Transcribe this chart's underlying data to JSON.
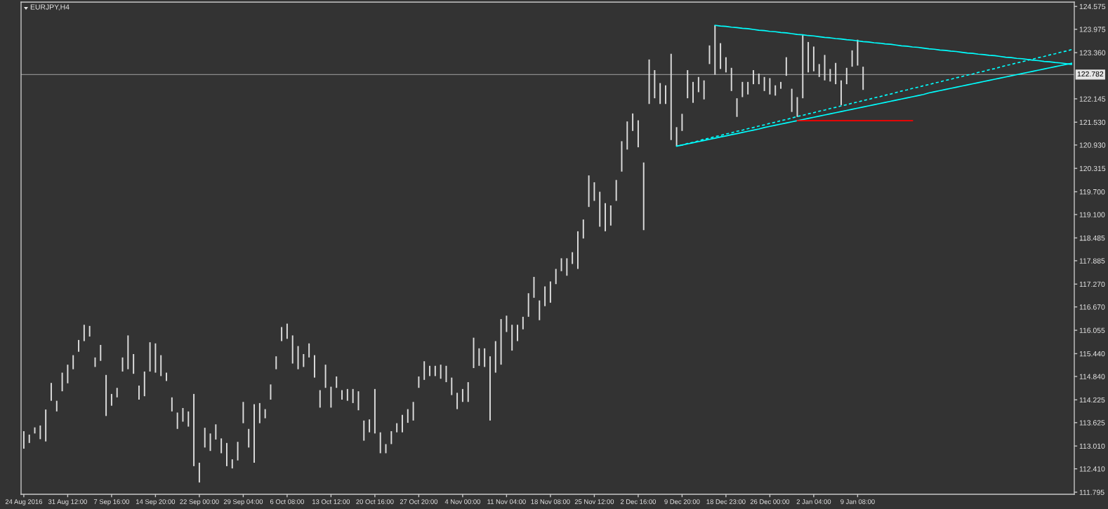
{
  "chart_data": {
    "type": "bar",
    "title": "EURJPY,H4",
    "categories": [
      "24 Aug 2016",
      null,
      null,
      null,
      null,
      null,
      null,
      null,
      "31 Aug 12:00",
      null,
      null,
      null,
      null,
      null,
      null,
      null,
      "7 Sep 16:00",
      null,
      null,
      null,
      null,
      null,
      null,
      null,
      "14 Sep 20:00",
      null,
      null,
      null,
      null,
      null,
      null,
      null,
      "22 Sep 00:00",
      null,
      null,
      null,
      null,
      null,
      null,
      null,
      "29 Sep 04:00",
      null,
      null,
      null,
      null,
      null,
      null,
      null,
      "6 Oct 08:00",
      null,
      null,
      null,
      null,
      null,
      null,
      null,
      "13 Oct 12:00",
      null,
      null,
      null,
      null,
      null,
      null,
      null,
      "20 Oct 16:00",
      null,
      null,
      null,
      null,
      null,
      null,
      null,
      "27 Oct 20:00",
      null,
      null,
      null,
      null,
      null,
      null,
      null,
      "4 Nov 00:00",
      null,
      null,
      null,
      null,
      null,
      null,
      null,
      "11 Nov 04:00",
      null,
      null,
      null,
      null,
      null,
      null,
      null,
      "18 Nov 08:00",
      null,
      null,
      null,
      null,
      null,
      null,
      null,
      "25 Nov 12:00",
      null,
      null,
      null,
      null,
      null,
      null,
      null,
      "2 Dec 16:00",
      null,
      null,
      null,
      null,
      null,
      null,
      null,
      "9 Dec 20:00",
      null,
      null,
      null,
      null,
      null,
      null,
      null,
      "18 Dec 23:00",
      null,
      null,
      null,
      null,
      null,
      null,
      null,
      "26 Dec 00:00",
      null,
      null,
      null,
      null,
      null,
      null,
      null,
      "2 Jan 04:00",
      null,
      null,
      null,
      null,
      null,
      null,
      null,
      "9 Jan 08:00",
      null,
      null,
      null,
      null,
      null,
      null,
      null,
      null,
      null,
      null,
      null,
      null,
      null,
      null,
      null,
      null,
      null,
      null,
      null,
      null,
      null,
      null,
      null,
      null,
      null,
      null,
      null,
      null,
      null,
      null,
      null,
      null,
      null,
      null,
      null,
      null,
      null,
      null,
      null
    ],
    "ylim": [
      111.74,
      124.69
    ],
    "yticks": [
      111.795,
      {
        "value": 112.41,
        "label": "112.410"
      },
      {
        "value": 113.01,
        "label": "113.010"
      },
      113.625,
      114.225,
      {
        "value": 114.84,
        "label": "114.840"
      },
      {
        "value": 115.44,
        "label": "115.440"
      },
      116.055,
      {
        "value": 116.67,
        "label": "116.670"
      },
      {
        "value": 117.27,
        "label": "117.270"
      },
      117.885,
      118.485,
      {
        "value": 119.1,
        "label": "119.100"
      },
      {
        "value": 119.7,
        "label": "119.700"
      },
      120.315,
      {
        "value": 120.93,
        "label": "120.930"
      },
      {
        "value": 121.53,
        "label": "121.530"
      },
      122.145,
      {
        "value": 123.36,
        "label": "123.360"
      },
      123.975,
      124.575
    ],
    "ref_lines": [
      {
        "axis": "y",
        "value": 122.782,
        "label": "122.782",
        "color": "#8c8c8c"
      }
    ],
    "series": [
      {
        "color": "#dcdcdc",
        "base": [
          112.94,
          113.09,
          113.34,
          113.19,
          113.13,
          114.2,
          113.92,
          114.45,
          114.66,
          115.03,
          115.49,
          115.77,
          115.89,
          115.09,
          115.25,
          113.8,
          114.07,
          114.29,
          114.97,
          115.03,
          114.91,
          114.23,
          114.32,
          114.97,
          114.94,
          114.85,
          114.72,
          113.92,
          113.46,
          113.65,
          113.52,
          112.48,
          112.05,
          112.97,
          112.88,
          113.18,
          112.82,
          112.48,
          112.42,
          112.63,
          113.61,
          112.97,
          112.57,
          113.61,
          113.74,
          114.23,
          115.03,
          115.77,
          115.83,
          115.18,
          115.03,
          115.09,
          115.34,
          114.81,
          114.02,
          114.54,
          114.02,
          114.54,
          114.23,
          114.2,
          114.14,
          113.95,
          113.15,
          113.37,
          113.34,
          112.82,
          112.82,
          113.06,
          113.37,
          113.37,
          113.62,
          113.68,
          114.54,
          114.75,
          114.85,
          114.85,
          114.78,
          114.69,
          114.35,
          113.98,
          114.17,
          114.17,
          115.06,
          115.12,
          115.09,
          113.68,
          114.94,
          115.15,
          116.01,
          115.52,
          115.77,
          116.08,
          116.41,
          116.91,
          116.32,
          116.69,
          116.78,
          117.27,
          117.61,
          117.49,
          117.8,
          117.67,
          118.47,
          119.3,
          119.46,
          118.78,
          118.66,
          118.81,
          119.46,
          120.23,
          120.81,
          121.3,
          120.87,
          118.69,
          122.01,
          122.16,
          122.01,
          122.01,
          121.06,
          120.9,
          121.3,
          122.16,
          122.04,
          122.32,
          122.13,
          123.06,
          122.78,
          122.93,
          122.84,
          122.35,
          121.67,
          122.19,
          122.26,
          122.53,
          122.53,
          122.35,
          122.26,
          122.23,
          122.41,
          122.75,
          121.8,
          121.67,
          122.16,
          122.84,
          122.87,
          122.72,
          122.63,
          122.6,
          122.53,
          121.98,
          122.53,
          122.99,
          123.02,
          122.38,
          null,
          null,
          null,
          null,
          null,
          null,
          null,
          null,
          null,
          null,
          null,
          null,
          null,
          null,
          null,
          null,
          null,
          null,
          null,
          null,
          null,
          null,
          null,
          null,
          null,
          null,
          null,
          null,
          null,
          null,
          null,
          null,
          null,
          null,
          null,
          null,
          null,
          null
        ],
        "values": [
          0.46,
          0.22,
          0.16,
          0.36,
          0.84,
          0.47,
          0.28,
          0.49,
          0.49,
          0.37,
          0.31,
          0.43,
          0.28,
          0.25,
          0.42,
          1.08,
          0.31,
          0.25,
          0.37,
          0.89,
          0.52,
          0.37,
          0.65,
          0.77,
          0.77,
          0.55,
          0.22,
          0.37,
          0.43,
          0.36,
          0.4,
          1.9,
          0.52,
          0.52,
          0.46,
          0.4,
          0.39,
          0.61,
          0.24,
          0.49,
          0.56,
          0.49,
          1.54,
          0.53,
          0.24,
          0.4,
          0.34,
          0.37,
          0.4,
          0.74,
          0.61,
          0.34,
          0.37,
          0.59,
          0.46,
          0.61,
          0.55,
          0.3,
          0.25,
          0.31,
          0.37,
          0.5,
          0.53,
          0.34,
          1.17,
          0.55,
          0.24,
          0.34,
          0.24,
          0.46,
          0.36,
          0.49,
          0.3,
          0.49,
          0.27,
          0.27,
          0.37,
          0.43,
          0.46,
          0.43,
          0.34,
          0.52,
          0.8,
          0.46,
          0.49,
          1.69,
          0.83,
          1.2,
          0.43,
          0.68,
          0.43,
          0.33,
          0.62,
          0.55,
          0.52,
          0.52,
          0.56,
          0.4,
          0.34,
          0.46,
          0.31,
          0.99,
          0.5,
          0.83,
          0.49,
          0.92,
          0.74,
          0.53,
          0.55,
          0.8,
          0.74,
          0.46,
          0.71,
          1.78,
          1.17,
          0.74,
          0.55,
          0.49,
          2.27,
          0.5,
          0.45,
          0.74,
          0.55,
          0.4,
          0.5,
          0.49,
          1.3,
          0.68,
          0.4,
          0.61,
          0.49,
          0.4,
          0.33,
          0.37,
          0.28,
          0.37,
          0.43,
          0.27,
          0.18,
          0.49,
          0.61,
          0.52,
          1.66,
          0.8,
          0.65,
          0.34,
          0.67,
          0.33,
          0.56,
          0.65,
          0.43,
          0.43,
          0.68,
          0.61,
          null,
          null,
          null,
          null,
          null,
          null,
          null,
          null,
          null,
          null,
          null,
          null,
          null,
          null,
          null,
          null,
          null,
          null,
          null,
          null,
          null,
          null,
          null,
          null,
          null,
          null,
          null,
          null,
          null,
          null,
          null,
          null,
          null,
          null,
          null,
          null,
          null,
          null
        ]
      },
      {
        "type": "line",
        "color": "#00ffff",
        "line_style": "solid",
        "values": [
          null,
          null,
          null,
          null,
          null,
          null,
          null,
          null,
          null,
          null,
          null,
          null,
          null,
          null,
          null,
          null,
          null,
          null,
          null,
          null,
          null,
          null,
          null,
          null,
          null,
          null,
          null,
          null,
          null,
          null,
          null,
          null,
          null,
          null,
          null,
          null,
          null,
          null,
          null,
          null,
          null,
          null,
          null,
          null,
          null,
          null,
          null,
          null,
          null,
          null,
          null,
          null,
          null,
          null,
          null,
          null,
          null,
          null,
          null,
          null,
          null,
          null,
          null,
          null,
          null,
          null,
          null,
          null,
          null,
          null,
          null,
          null,
          null,
          null,
          null,
          null,
          null,
          null,
          null,
          null,
          null,
          null,
          null,
          null,
          null,
          null,
          null,
          null,
          null,
          null,
          null,
          null,
          null,
          null,
          null,
          null,
          null,
          null,
          null,
          null,
          null,
          null,
          null,
          null,
          null,
          null,
          null,
          null,
          null,
          null,
          null,
          null,
          null,
          null,
          null,
          null,
          null,
          null,
          null,
          null,
          null,
          null,
          null,
          null,
          null,
          null,
          124.08,
          124.06,
          124.05,
          124.03,
          124.02,
          124.0,
          123.99,
          123.97,
          123.95,
          123.94,
          123.92,
          123.91,
          123.89,
          123.88,
          123.86,
          123.84,
          123.83,
          123.81,
          123.8,
          123.78,
          123.76,
          123.75,
          123.73,
          123.72,
          123.7,
          123.69,
          123.67,
          123.65,
          123.64,
          123.62,
          123.61,
          123.59,
          123.58,
          123.56,
          123.54,
          123.53,
          123.51,
          123.5,
          123.48,
          123.46,
          123.45,
          123.43,
          123.42,
          123.4,
          123.39,
          123.37,
          123.35,
          123.34,
          123.32,
          123.31,
          123.29,
          123.28,
          123.26,
          123.24,
          123.23,
          123.21,
          123.2,
          123.18,
          123.16,
          123.15,
          123.13,
          123.12,
          123.1,
          123.09,
          123.07,
          123.05
        ]
      },
      {
        "type": "line",
        "color": "#00ffff",
        "line_style": "solid",
        "values": [
          null,
          null,
          null,
          null,
          null,
          null,
          null,
          null,
          null,
          null,
          null,
          null,
          null,
          null,
          null,
          null,
          null,
          null,
          null,
          null,
          null,
          null,
          null,
          null,
          null,
          null,
          null,
          null,
          null,
          null,
          null,
          null,
          null,
          null,
          null,
          null,
          null,
          null,
          null,
          null,
          null,
          null,
          null,
          null,
          null,
          null,
          null,
          null,
          null,
          null,
          null,
          null,
          null,
          null,
          null,
          null,
          null,
          null,
          null,
          null,
          null,
          null,
          null,
          null,
          null,
          null,
          null,
          null,
          null,
          null,
          null,
          null,
          null,
          null,
          null,
          null,
          null,
          null,
          null,
          null,
          null,
          null,
          null,
          null,
          null,
          null,
          null,
          null,
          null,
          null,
          null,
          null,
          null,
          null,
          null,
          null,
          null,
          null,
          null,
          null,
          null,
          null,
          null,
          null,
          null,
          null,
          null,
          null,
          null,
          null,
          null,
          null,
          null,
          null,
          null,
          null,
          null,
          null,
          null,
          120.9,
          120.93,
          120.96,
          120.99,
          121.02,
          121.05,
          121.08,
          121.11,
          121.14,
          121.17,
          121.2,
          121.23,
          121.26,
          121.29,
          121.32,
          121.35,
          121.39,
          121.42,
          121.45,
          121.48,
          121.51,
          121.54,
          121.57,
          121.6,
          121.63,
          121.66,
          121.69,
          121.72,
          121.75,
          121.78,
          121.81,
          121.84,
          121.87,
          121.9,
          121.93,
          121.96,
          121.99,
          122.02,
          122.05,
          122.08,
          122.11,
          122.14,
          122.17,
          122.2,
          122.23,
          122.26,
          122.3,
          122.33,
          122.36,
          122.39,
          122.42,
          122.45,
          122.48,
          122.51,
          122.54,
          122.57,
          122.6,
          122.63,
          122.66,
          122.69,
          122.72,
          122.75,
          122.78,
          122.81,
          122.84,
          122.87,
          122.9,
          122.93,
          122.96,
          122.99,
          123.02,
          123.05,
          123.08
        ]
      },
      {
        "type": "line",
        "color": "#00ffff",
        "line_style": "dashed",
        "values": [
          null,
          null,
          null,
          null,
          null,
          null,
          null,
          null,
          null,
          null,
          null,
          null,
          null,
          null,
          null,
          null,
          null,
          null,
          null,
          null,
          null,
          null,
          null,
          null,
          null,
          null,
          null,
          null,
          null,
          null,
          null,
          null,
          null,
          null,
          null,
          null,
          null,
          null,
          null,
          null,
          null,
          null,
          null,
          null,
          null,
          null,
          null,
          null,
          null,
          null,
          null,
          null,
          null,
          null,
          null,
          null,
          null,
          null,
          null,
          null,
          null,
          null,
          null,
          null,
          null,
          null,
          null,
          null,
          null,
          null,
          null,
          null,
          null,
          null,
          null,
          null,
          null,
          null,
          null,
          null,
          null,
          null,
          null,
          null,
          null,
          null,
          null,
          null,
          null,
          null,
          null,
          null,
          null,
          null,
          null,
          null,
          null,
          null,
          null,
          null,
          null,
          null,
          null,
          null,
          null,
          null,
          null,
          null,
          null,
          null,
          null,
          null,
          null,
          null,
          null,
          null,
          null,
          null,
          null,
          120.9,
          120.93,
          120.97,
          121.0,
          121.04,
          121.08,
          121.11,
          121.15,
          121.18,
          121.22,
          121.25,
          121.29,
          121.32,
          121.36,
          121.39,
          121.43,
          121.46,
          121.5,
          121.53,
          121.57,
          121.6,
          121.64,
          121.68,
          121.71,
          121.75,
          121.78,
          121.82,
          121.85,
          121.89,
          121.92,
          121.96,
          121.99,
          122.03,
          122.06,
          122.1,
          122.13,
          122.17,
          122.2,
          122.24,
          122.27,
          122.31,
          122.35,
          122.38,
          122.42,
          122.45,
          122.49,
          122.52,
          122.56,
          122.59,
          122.63,
          122.66,
          122.7,
          122.73,
          122.77,
          122.8,
          122.84,
          122.87,
          122.91,
          122.94,
          122.98,
          123.02,
          123.05,
          123.09,
          123.12,
          123.16,
          123.19,
          123.23,
          123.26,
          123.3,
          123.33,
          123.37,
          123.4,
          123.44
        ]
      },
      {
        "type": "line",
        "color": "#ff0000",
        "line_style": "solid",
        "values": [
          null,
          null,
          null,
          null,
          null,
          null,
          null,
          null,
          null,
          null,
          null,
          null,
          null,
          null,
          null,
          null,
          null,
          null,
          null,
          null,
          null,
          null,
          null,
          null,
          null,
          null,
          null,
          null,
          null,
          null,
          null,
          null,
          null,
          null,
          null,
          null,
          null,
          null,
          null,
          null,
          null,
          null,
          null,
          null,
          null,
          null,
          null,
          null,
          null,
          null,
          null,
          null,
          null,
          null,
          null,
          null,
          null,
          null,
          null,
          null,
          null,
          null,
          null,
          null,
          null,
          null,
          null,
          null,
          null,
          null,
          null,
          null,
          null,
          null,
          null,
          null,
          null,
          null,
          null,
          null,
          null,
          null,
          null,
          null,
          null,
          null,
          null,
          null,
          null,
          null,
          null,
          null,
          null,
          null,
          null,
          null,
          null,
          null,
          null,
          null,
          null,
          null,
          null,
          null,
          null,
          null,
          null,
          null,
          null,
          null,
          null,
          null,
          null,
          null,
          null,
          null,
          null,
          null,
          null,
          null,
          null,
          null,
          null,
          null,
          null,
          null,
          null,
          null,
          null,
          null,
          null,
          null,
          null,
          null,
          null,
          null,
          null,
          null,
          null,
          null,
          null,
          121.57,
          121.57,
          121.57,
          121.57,
          121.57,
          121.57,
          121.57,
          121.57,
          121.57,
          121.57,
          121.57,
          121.57,
          121.57,
          121.57,
          121.57,
          121.57,
          121.57,
          121.57,
          121.57,
          121.57,
          121.57,
          121.57,
          null,
          null,
          null,
          null,
          null,
          null,
          null,
          null,
          null,
          null,
          null,
          null,
          null,
          null,
          null,
          null,
          null,
          null,
          null,
          null,
          null,
          null,
          null,
          null,
          null,
          null,
          null,
          null,
          null
        ]
      }
    ]
  }
}
